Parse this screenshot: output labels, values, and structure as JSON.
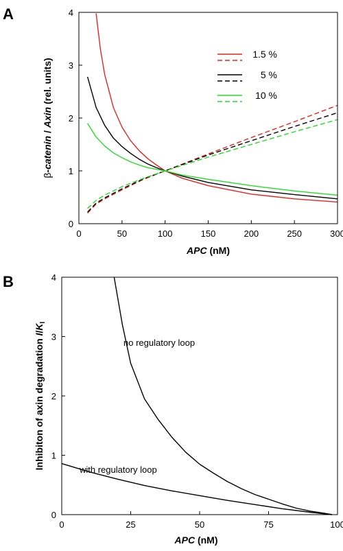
{
  "panels": {
    "a": {
      "label": "A"
    },
    "b": {
      "label": "B"
    }
  },
  "chart_data": [
    {
      "type": "line",
      "panel": "A",
      "xlabel_italic": "APC",
      "xlabel_unit": " (nM)",
      "ylabel_greek": "β",
      "ylabel_italic1": "-catenin",
      "ylabel_sep": " / ",
      "ylabel_italic2": "Axin",
      "ylabel_unit": " (rel. units)",
      "xlim": [
        0,
        300
      ],
      "ylim": [
        0,
        4
      ],
      "xticks": [
        0,
        50,
        100,
        150,
        200,
        250,
        300
      ],
      "yticks": [
        0,
        1,
        2,
        3,
        4
      ],
      "legend_position": "top-right",
      "legend_entries": [
        {
          "label": "1.5 %",
          "color": "#e8231e"
        },
        {
          "label": "5 %",
          "color": "#000000"
        },
        {
          "label": "10 %",
          "color": "#22dd22"
        }
      ],
      "series": [
        {
          "color": "#e8231e",
          "style": "solid",
          "x": [
            20,
            25,
            30,
            40,
            50,
            60,
            70,
            80,
            90,
            100,
            120,
            150,
            200,
            250,
            300
          ],
          "y": [
            3.98,
            3.3,
            2.82,
            2.2,
            1.83,
            1.57,
            1.38,
            1.23,
            1.11,
            1.0,
            0.86,
            0.72,
            0.56,
            0.47,
            0.41
          ]
        },
        {
          "color": "#e8231e",
          "style": "dashed",
          "x": [
            10,
            20,
            30,
            50,
            75,
            100,
            150,
            200,
            250,
            300
          ],
          "y": [
            0.2,
            0.37,
            0.47,
            0.64,
            0.84,
            1.0,
            1.32,
            1.63,
            1.93,
            2.24
          ]
        },
        {
          "color": "#000000",
          "style": "solid",
          "x": [
            10,
            20,
            30,
            40,
            50,
            60,
            70,
            80,
            90,
            100,
            120,
            150,
            200,
            250,
            300
          ],
          "y": [
            2.78,
            2.2,
            1.86,
            1.62,
            1.46,
            1.33,
            1.22,
            1.13,
            1.06,
            1.0,
            0.9,
            0.78,
            0.64,
            0.55,
            0.47
          ]
        },
        {
          "color": "#000000",
          "style": "dashed",
          "x": [
            10,
            20,
            30,
            50,
            75,
            100,
            150,
            200,
            250,
            300
          ],
          "y": [
            0.22,
            0.39,
            0.49,
            0.66,
            0.85,
            1.0,
            1.3,
            1.57,
            1.84,
            2.1
          ]
        },
        {
          "color": "#22dd22",
          "style": "solid",
          "x": [
            10,
            20,
            30,
            40,
            50,
            60,
            70,
            80,
            90,
            100,
            120,
            150,
            200,
            250,
            300
          ],
          "y": [
            1.9,
            1.64,
            1.47,
            1.34,
            1.25,
            1.17,
            1.11,
            1.06,
            1.03,
            1.0,
            0.92,
            0.84,
            0.72,
            0.62,
            0.54
          ]
        },
        {
          "color": "#22dd22",
          "style": "dashed",
          "x": [
            10,
            20,
            30,
            50,
            75,
            100,
            150,
            200,
            250,
            300
          ],
          "y": [
            0.29,
            0.44,
            0.54,
            0.7,
            0.86,
            1.0,
            1.26,
            1.5,
            1.74,
            1.97
          ]
        }
      ]
    },
    {
      "type": "line",
      "panel": "B",
      "xlabel_italic": "APC",
      "xlabel_unit": " (nM)",
      "ylabel_main": "Inhibiton of axin degradation  ",
      "ylabel_var": "I",
      "ylabel_slash": "/",
      "ylabel_const": "K",
      "ylabel_sub": "I",
      "xlim": [
        0,
        100
      ],
      "ylim": [
        0,
        4
      ],
      "xticks": [
        0,
        25,
        50,
        75,
        100
      ],
      "yticks": [
        0,
        1,
        2,
        3,
        4
      ],
      "series": [
        {
          "label": "no regulatory loop",
          "color": "#000000",
          "x": [
            19,
            22,
            25,
            30,
            35,
            40,
            45,
            50,
            55,
            60,
            65,
            70,
            75,
            80,
            85,
            90,
            95,
            98
          ],
          "y": [
            4.0,
            3.2,
            2.55,
            1.95,
            1.6,
            1.3,
            1.05,
            0.85,
            0.7,
            0.56,
            0.44,
            0.34,
            0.26,
            0.18,
            0.11,
            0.06,
            0.025,
            0.0
          ]
        },
        {
          "label": "with regulatory loop",
          "color": "#000000",
          "x": [
            0,
            10,
            20,
            30,
            40,
            50,
            60,
            70,
            80,
            90,
            98
          ],
          "y": [
            0.86,
            0.72,
            0.6,
            0.49,
            0.4,
            0.32,
            0.24,
            0.17,
            0.1,
            0.04,
            0.0
          ]
        }
      ]
    }
  ]
}
